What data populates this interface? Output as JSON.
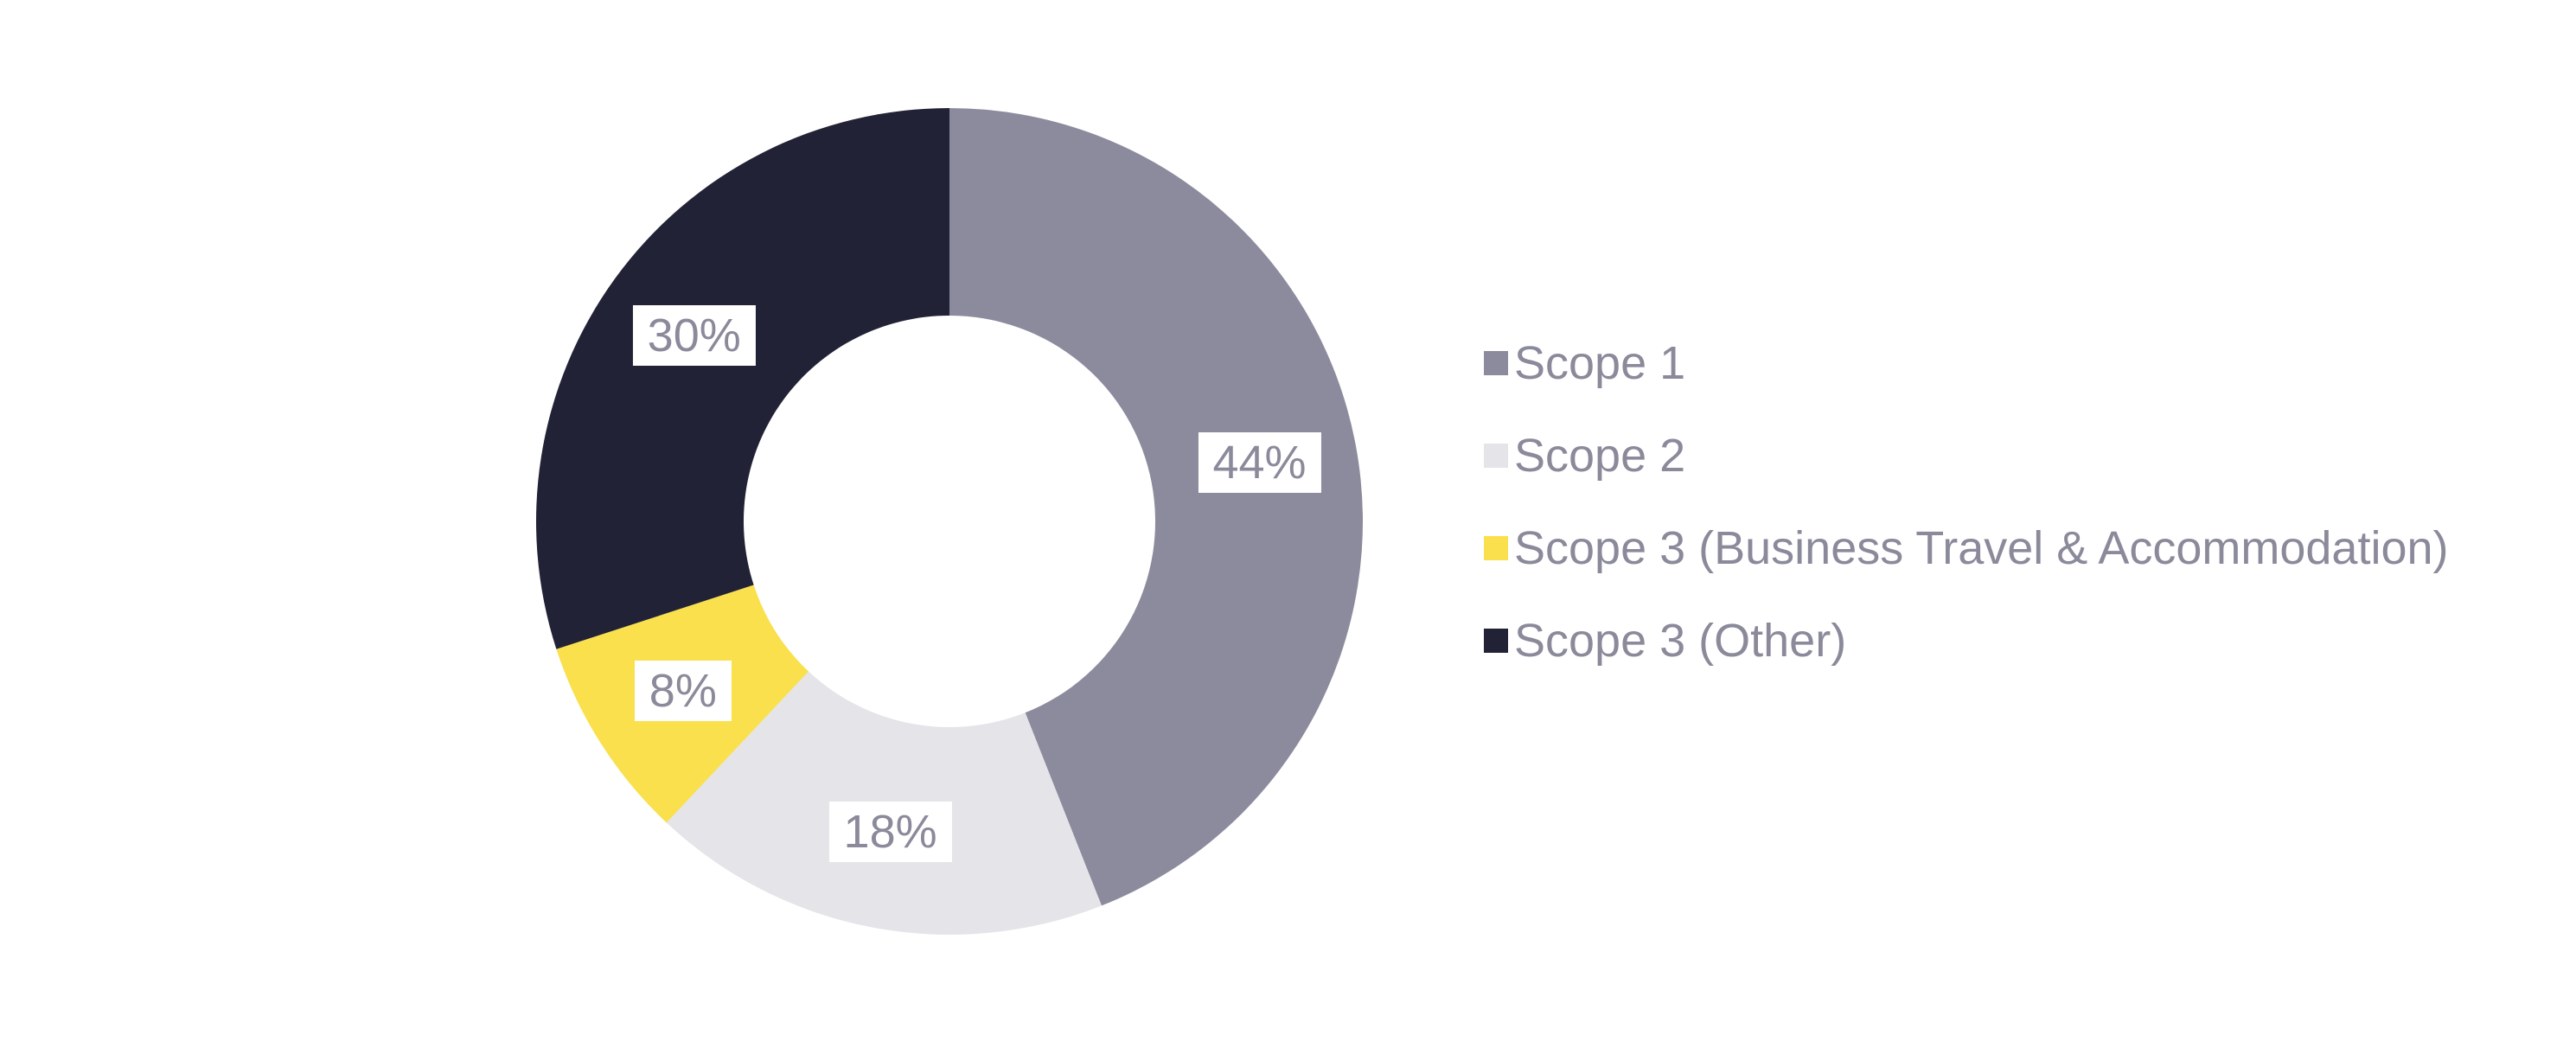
{
  "chart_data": {
    "type": "pie",
    "subtype": "donut",
    "categories": [
      "Scope 1",
      "Scope 2",
      "Scope 3 (Business Travel & Accommodation)",
      "Scope 3 (Other)"
    ],
    "values": [
      44,
      18,
      8,
      30
    ],
    "unit": "%",
    "data_labels": [
      "44%",
      "18%",
      "8%",
      "30%"
    ],
    "colors": [
      "#8B8B9D",
      "#E4E4E9",
      "#F9E04C",
      "#222236"
    ],
    "title": "",
    "start_angle_deg": 0,
    "direction": "clockwise",
    "legend_position": "right",
    "label_text_color": "#8A8A9B",
    "label_background_color": "#FFFFFF",
    "background_color": "#FFFFFF"
  },
  "legend": {
    "items": [
      {
        "label": "Scope 1",
        "color": "#8B8B9D"
      },
      {
        "label": "Scope 2",
        "color": "#E4E4E9"
      },
      {
        "label": "Scope 3 (Business Travel & Accommodation)",
        "color": "#F9E04C"
      },
      {
        "label": "Scope 3 (Other)",
        "color": "#222236"
      }
    ]
  }
}
